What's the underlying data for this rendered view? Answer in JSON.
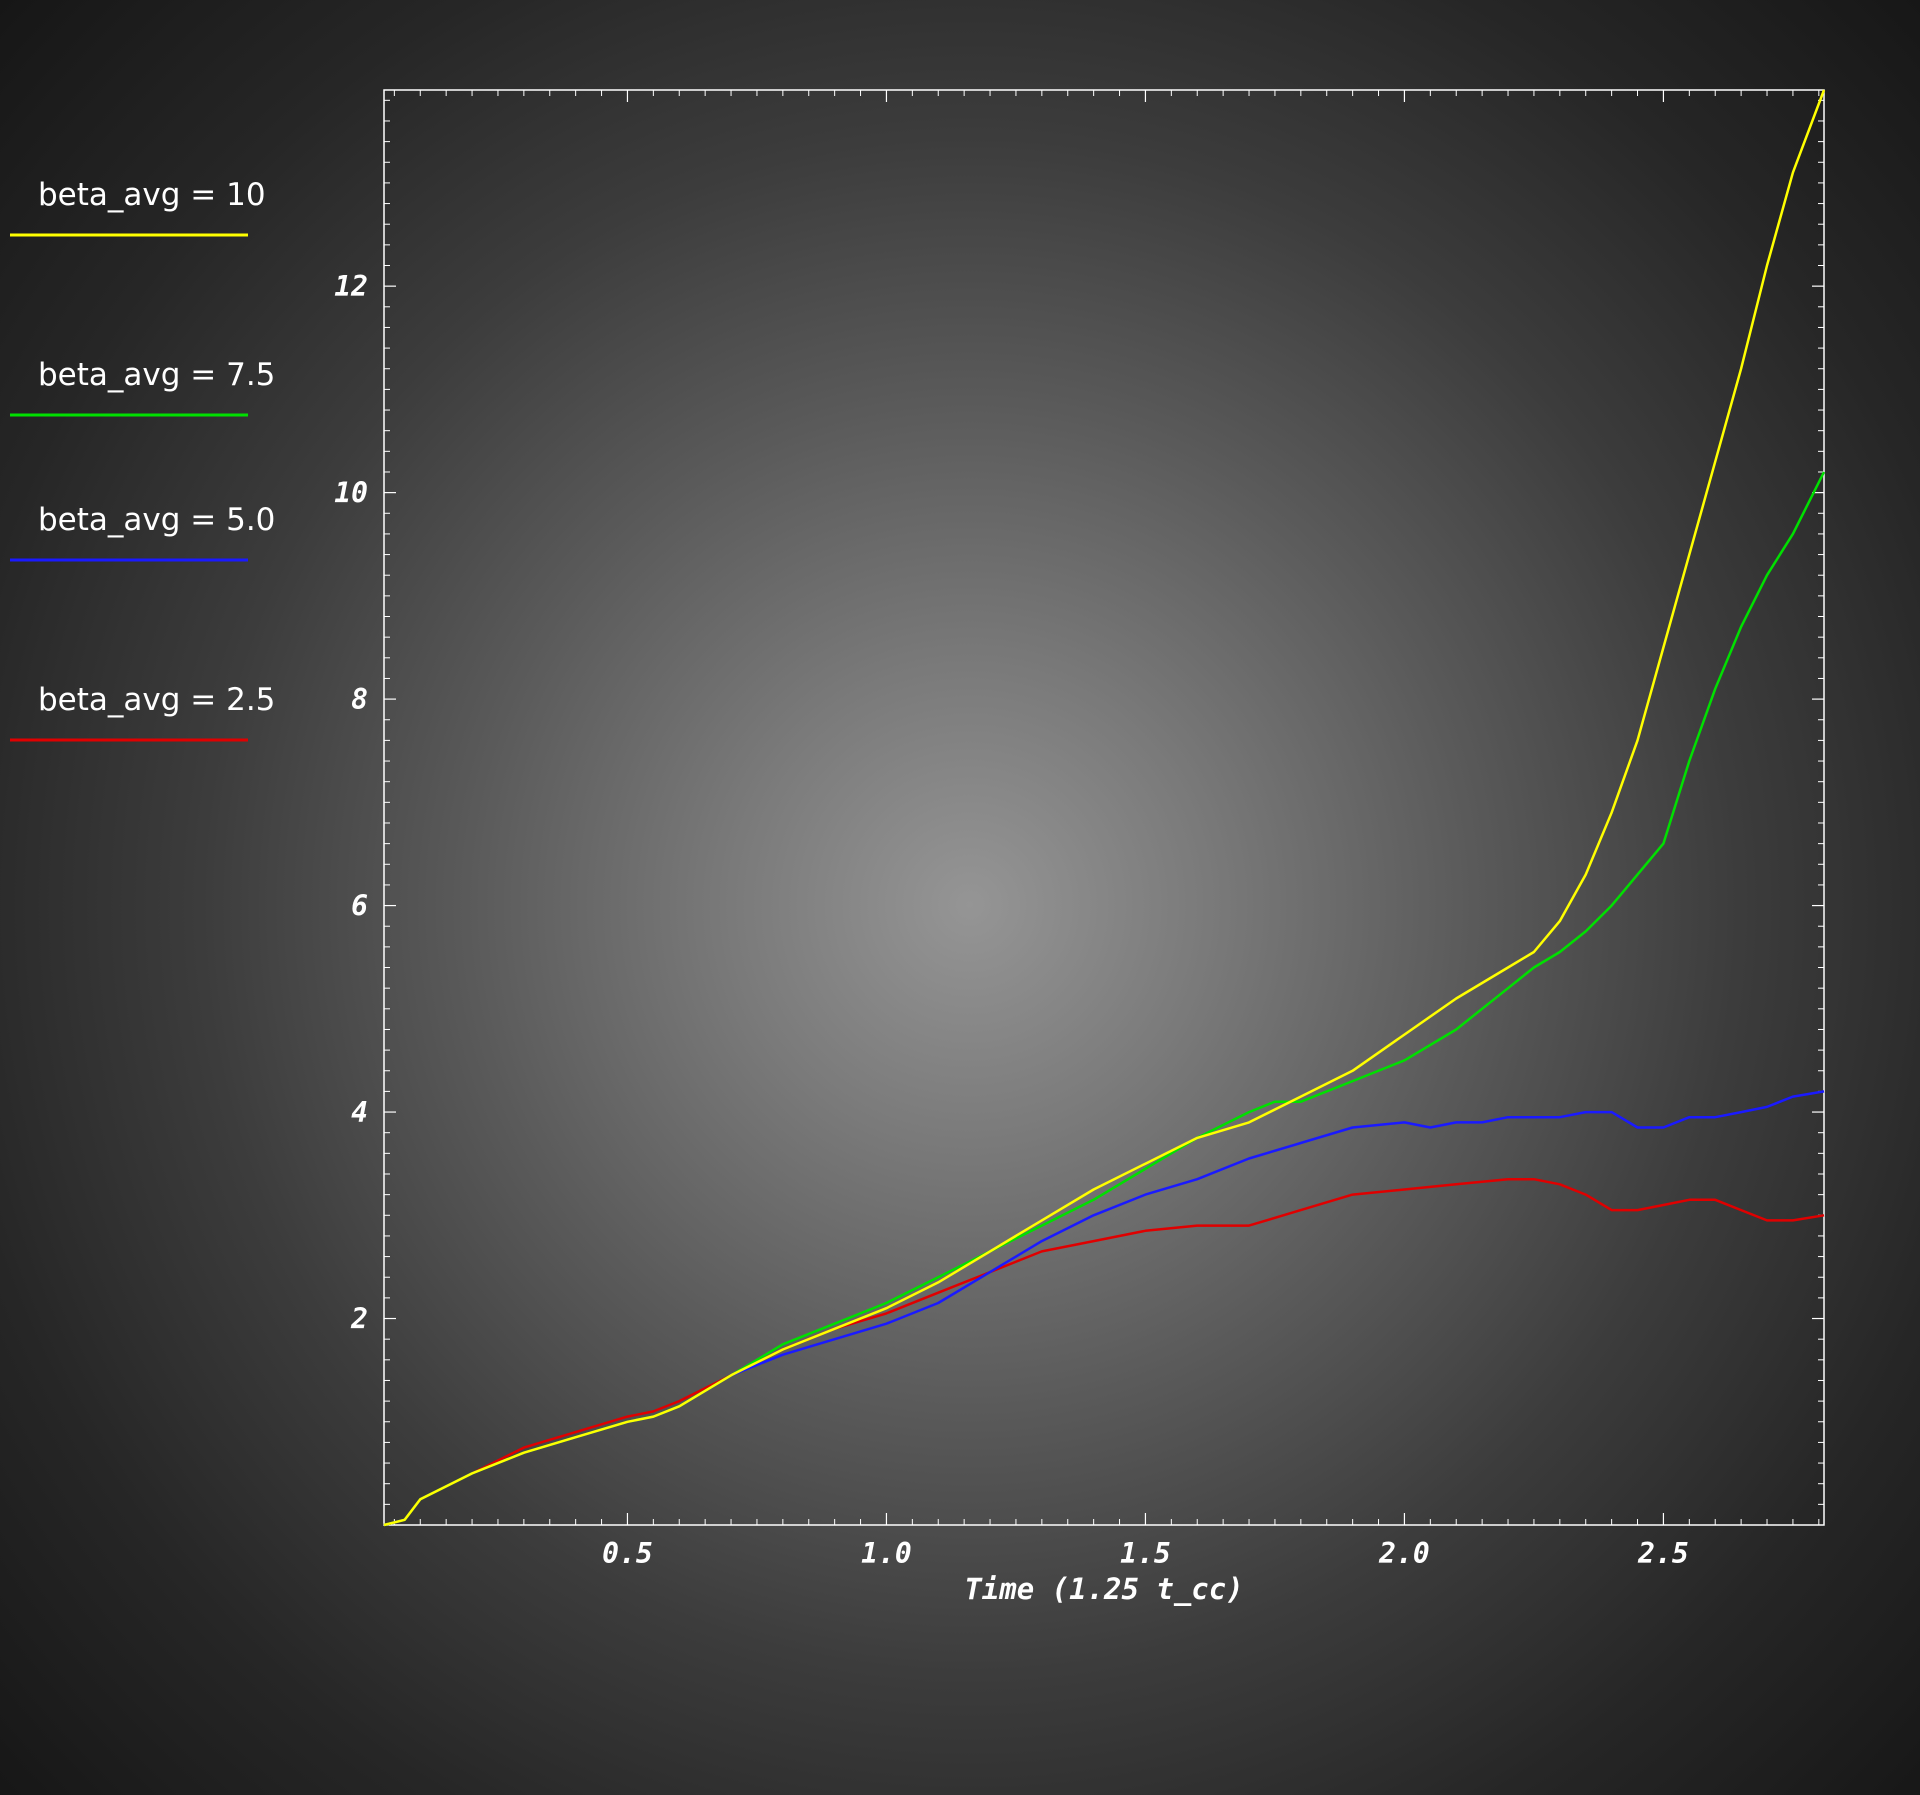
{
  "chart_data": {
    "type": "line",
    "title": "",
    "xlabel": "Time (1.25 t_cc)",
    "ylabel": "",
    "xlim": [
      0.03,
      2.81
    ],
    "ylim": [
      0,
      13.9
    ],
    "xticks": [
      "0.5",
      "1.0",
      "1.5",
      "2.0",
      "2.5"
    ],
    "yticks": [
      "2",
      "4",
      "6",
      "8",
      "10",
      "12"
    ],
    "grid": false,
    "legend_position": "left-outside",
    "series": [
      {
        "name": "beta_avg = 10",
        "color": "#ffff00",
        "x": [
          0.03,
          0.07,
          0.1,
          0.2,
          0.3,
          0.4,
          0.5,
          0.55,
          0.6,
          0.7,
          0.8,
          0.9,
          1.0,
          1.1,
          1.2,
          1.3,
          1.4,
          1.5,
          1.6,
          1.7,
          1.8,
          1.9,
          2.0,
          2.1,
          2.15,
          2.2,
          2.25,
          2.3,
          2.35,
          2.4,
          2.45,
          2.5,
          2.55,
          2.6,
          2.65,
          2.7,
          2.75,
          2.81
        ],
        "y": [
          0.0,
          0.05,
          0.25,
          0.5,
          0.7,
          0.85,
          1.0,
          1.05,
          1.15,
          1.45,
          1.7,
          1.9,
          2.1,
          2.35,
          2.65,
          2.95,
          3.25,
          3.5,
          3.75,
          3.9,
          4.15,
          4.4,
          4.75,
          5.1,
          5.25,
          5.4,
          5.55,
          5.85,
          6.3,
          6.9,
          7.6,
          8.5,
          9.4,
          10.3,
          11.2,
          12.2,
          13.1,
          13.9
        ]
      },
      {
        "name": "beta_avg = 7.5",
        "color": "#00e000",
        "x": [
          0.03,
          0.07,
          0.1,
          0.2,
          0.3,
          0.4,
          0.5,
          0.55,
          0.6,
          0.7,
          0.8,
          0.9,
          1.0,
          1.1,
          1.2,
          1.3,
          1.4,
          1.5,
          1.6,
          1.7,
          1.75,
          1.8,
          1.9,
          2.0,
          2.1,
          2.15,
          2.2,
          2.25,
          2.3,
          2.35,
          2.4,
          2.45,
          2.5,
          2.55,
          2.6,
          2.65,
          2.7,
          2.75,
          2.81
        ],
        "y": [
          0.0,
          0.05,
          0.25,
          0.5,
          0.7,
          0.85,
          1.0,
          1.05,
          1.15,
          1.45,
          1.75,
          1.95,
          2.15,
          2.4,
          2.65,
          2.9,
          3.15,
          3.45,
          3.75,
          4.0,
          4.1,
          4.1,
          4.3,
          4.5,
          4.8,
          5.0,
          5.2,
          5.4,
          5.55,
          5.75,
          6.0,
          6.3,
          6.6,
          7.4,
          8.1,
          8.7,
          9.2,
          9.6,
          10.2
        ]
      },
      {
        "name": "beta_avg = 5.0",
        "color": "#1a1aff",
        "x": [
          0.03,
          0.07,
          0.1,
          0.2,
          0.3,
          0.4,
          0.5,
          0.55,
          0.6,
          0.7,
          0.8,
          0.9,
          1.0,
          1.1,
          1.2,
          1.3,
          1.4,
          1.5,
          1.6,
          1.7,
          1.8,
          1.9,
          2.0,
          2.05,
          2.1,
          2.15,
          2.2,
          2.25,
          2.3,
          2.35,
          2.4,
          2.45,
          2.5,
          2.55,
          2.6,
          2.65,
          2.7,
          2.75,
          2.81
        ],
        "y": [
          0.0,
          0.05,
          0.25,
          0.5,
          0.7,
          0.85,
          1.0,
          1.05,
          1.15,
          1.45,
          1.65,
          1.8,
          1.95,
          2.15,
          2.45,
          2.75,
          3.0,
          3.2,
          3.35,
          3.55,
          3.7,
          3.85,
          3.9,
          3.85,
          3.9,
          3.9,
          3.95,
          3.95,
          3.95,
          4.0,
          4.0,
          3.85,
          3.85,
          3.95,
          3.95,
          4.0,
          4.05,
          4.15,
          4.2
        ]
      },
      {
        "name": "beta_avg = 2.5",
        "color": "#e00000",
        "x": [
          0.03,
          0.07,
          0.1,
          0.2,
          0.3,
          0.4,
          0.5,
          0.55,
          0.6,
          0.7,
          0.8,
          0.9,
          1.0,
          1.1,
          1.2,
          1.3,
          1.4,
          1.5,
          1.6,
          1.7,
          1.8,
          1.9,
          2.0,
          2.1,
          2.2,
          2.25,
          2.3,
          2.35,
          2.4,
          2.45,
          2.5,
          2.55,
          2.6,
          2.65,
          2.7,
          2.75,
          2.81
        ],
        "y": [
          0.0,
          0.05,
          0.25,
          0.5,
          0.75,
          0.9,
          1.05,
          1.1,
          1.2,
          1.45,
          1.7,
          1.9,
          2.05,
          2.25,
          2.45,
          2.65,
          2.75,
          2.85,
          2.9,
          2.9,
          3.05,
          3.2,
          3.25,
          3.3,
          3.35,
          3.35,
          3.3,
          3.2,
          3.05,
          3.05,
          3.1,
          3.15,
          3.15,
          3.05,
          2.95,
          2.95,
          3.0
        ]
      }
    ]
  }
}
